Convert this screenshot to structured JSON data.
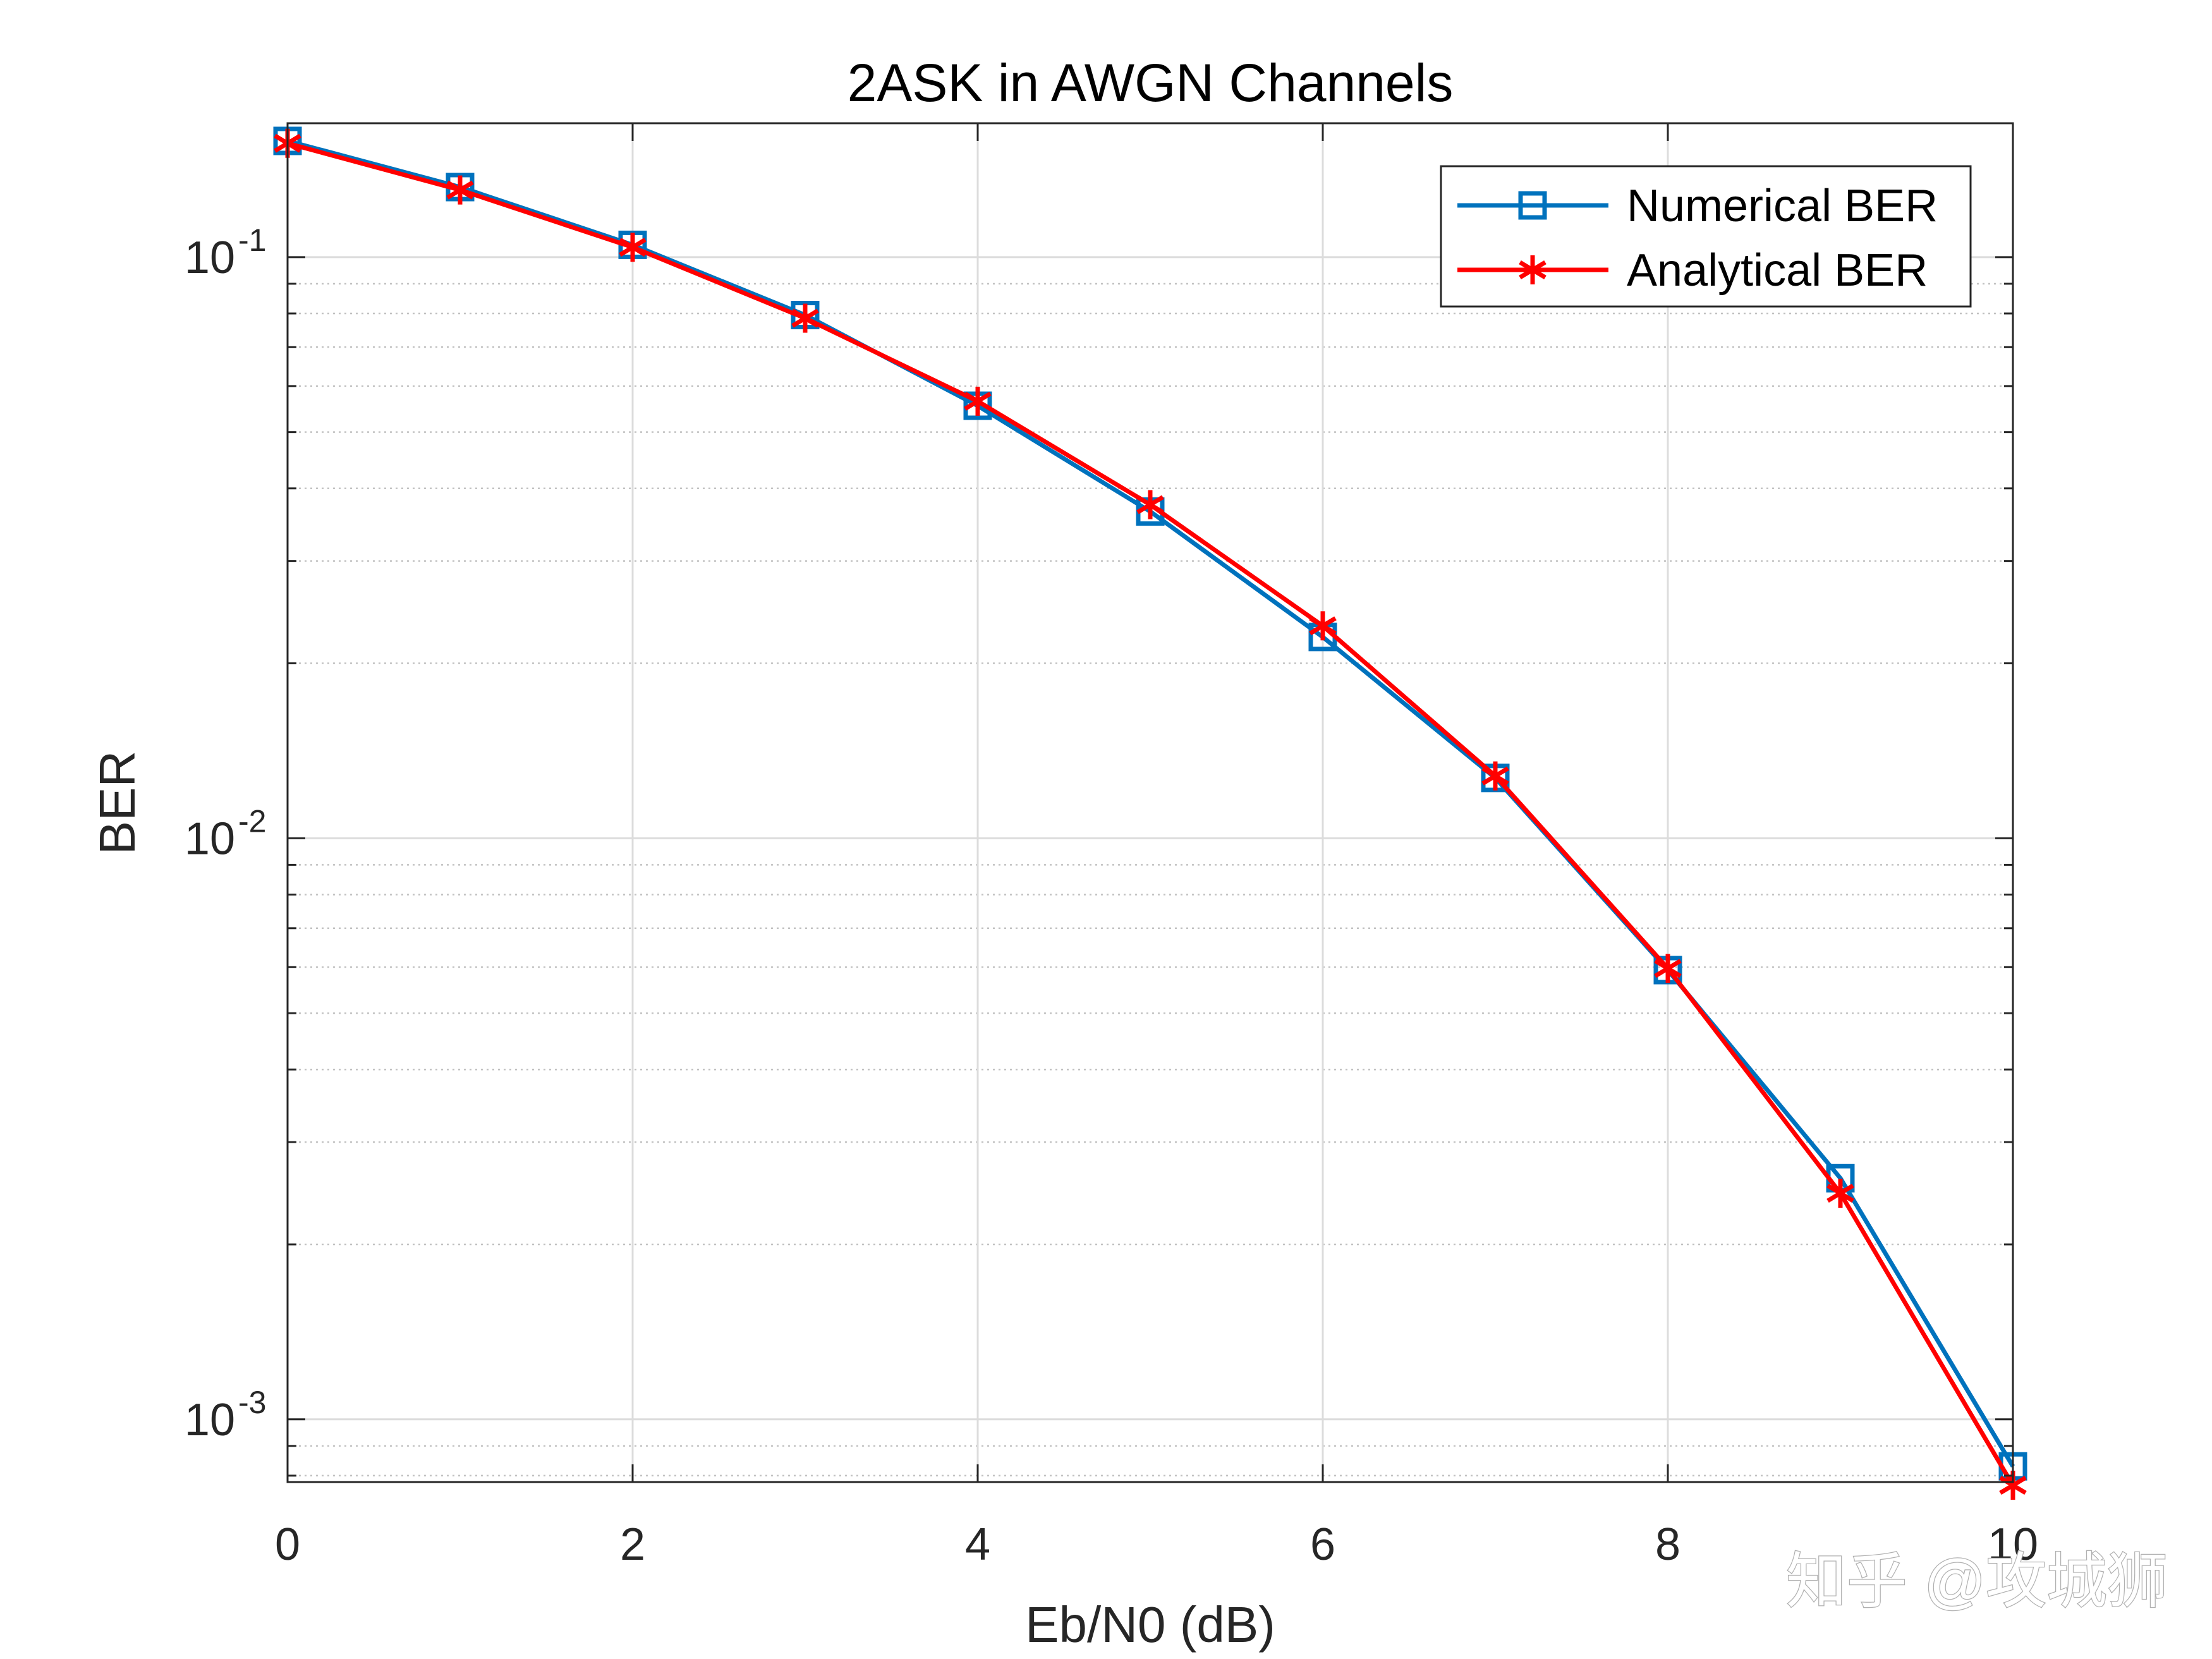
{
  "chart_data": {
    "type": "line",
    "title": "2ASK in AWGN Channels",
    "xlabel": "Eb/N0 (dB)",
    "ylabel": "BER",
    "yscale": "log",
    "xlim": [
      0,
      10
    ],
    "ylim": [
      0.00078,
      0.17
    ],
    "x": [
      0,
      1,
      2,
      3,
      4,
      5,
      6,
      7,
      8,
      9,
      10
    ],
    "x_ticks": [
      0,
      2,
      4,
      6,
      8,
      10
    ],
    "x_tick_labels": [
      "0",
      "2",
      "4",
      "6",
      "8",
      "10"
    ],
    "y_ticks": [
      {
        "value": 0.1,
        "base": "10",
        "exp": "-1"
      },
      {
        "value": 0.01,
        "base": "10",
        "exp": "-2"
      },
      {
        "value": 0.001,
        "base": "10",
        "exp": "-3"
      }
    ],
    "grid": true,
    "minor_grid": true,
    "legend_position": "top-right",
    "series": [
      {
        "name": "Numerical BER",
        "color": "#0072BD",
        "marker": "square",
        "values": [
          0.1585,
          0.132,
          0.105,
          0.0795,
          0.0555,
          0.0365,
          0.0222,
          0.0127,
          0.00593,
          0.0026,
          0.00083
        ]
      },
      {
        "name": "Analytical BER",
        "color": "#FF0000",
        "marker": "asterisk",
        "values": [
          0.157,
          0.1305,
          0.104,
          0.0785,
          0.0565,
          0.0375,
          0.0232,
          0.0128,
          0.00597,
          0.00245,
          0.00077
        ]
      }
    ]
  },
  "watermark": {
    "text": "知乎 @攻城狮"
  }
}
